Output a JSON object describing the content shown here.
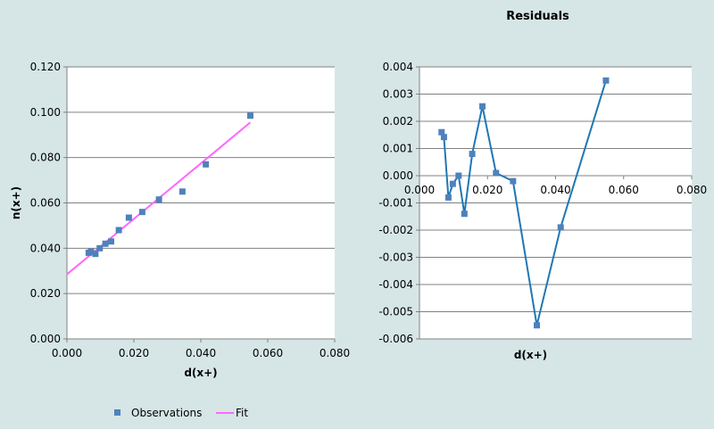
{
  "chart_data": [
    {
      "type": "scatter",
      "title": "",
      "xlabel": "d(x+)",
      "ylabel": "n(x+)",
      "xlim": [
        0,
        0.08
      ],
      "ylim": [
        0,
        0.12
      ],
      "xticks": [
        "0.000",
        "0.020",
        "0.040",
        "0.060",
        "0.080"
      ],
      "yticks": [
        "0.000",
        "0.020",
        "0.040",
        "0.060",
        "0.080",
        "0.100",
        "0.120"
      ],
      "grid": "horizontal",
      "series": [
        {
          "name": "Observations",
          "kind": "markers",
          "color": "#4f81bd",
          "x": [
            0.0065,
            0.0072,
            0.0085,
            0.0098,
            0.0115,
            0.0132,
            0.0155,
            0.0185,
            0.0225,
            0.0275,
            0.0345,
            0.0415,
            0.0548
          ],
          "y": [
            0.038,
            0.0385,
            0.0375,
            0.04,
            0.042,
            0.043,
            0.048,
            0.0535,
            0.056,
            0.0615,
            0.065,
            0.077,
            0.0985
          ]
        },
        {
          "name": "Fit",
          "kind": "line",
          "color": "#ff66ff",
          "x": [
            0.0,
            0.0548
          ],
          "y": [
            0.0285,
            0.0955
          ]
        }
      ],
      "legend": "bottom"
    },
    {
      "type": "line",
      "title": "Residuals",
      "xlabel": "d(x+)",
      "ylabel": "",
      "xlim": [
        0,
        0.08
      ],
      "ylim": [
        -0.006,
        0.004
      ],
      "xticks": [
        "0.000",
        "0.020",
        "0.040",
        "0.060",
        "0.080"
      ],
      "yticks": [
        "-0.006",
        "-0.005",
        "-0.004",
        "-0.003",
        "-0.002",
        "-0.001",
        "0.000",
        "0.001",
        "0.002",
        "0.003",
        "0.004"
      ],
      "grid": "horizontal",
      "series": [
        {
          "color": "#1f77b4",
          "x": [
            0.0065,
            0.0072,
            0.0085,
            0.0098,
            0.0115,
            0.0132,
            0.0155,
            0.0185,
            0.0225,
            0.0275,
            0.0345,
            0.0415,
            0.0548
          ],
          "y": [
            0.0016,
            0.00142,
            -0.0008,
            -0.0003,
            0.0,
            -0.0014,
            0.0008,
            0.00255,
            0.0001,
            -0.0002,
            -0.0055,
            -0.0019,
            0.0035
          ]
        }
      ]
    }
  ]
}
